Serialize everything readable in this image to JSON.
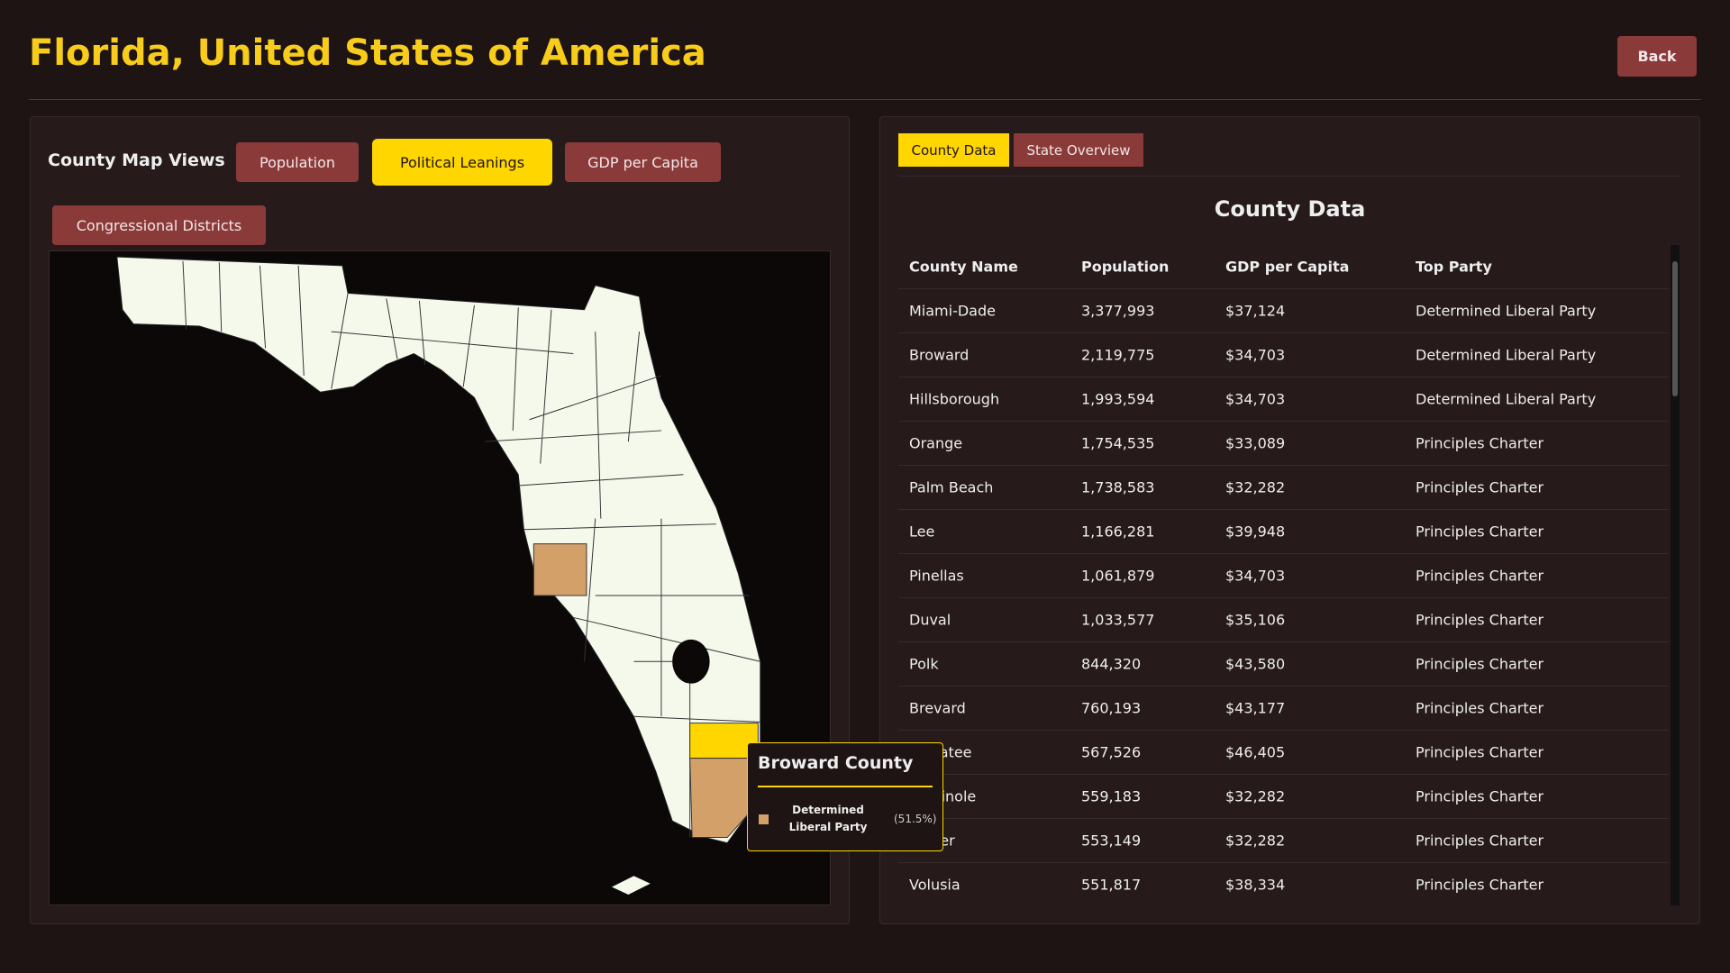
{
  "header": {
    "title": "Florida, United States of America",
    "back": "Back"
  },
  "map_panel": {
    "label": "County Map Views",
    "buttons": [
      "Population",
      "Political Leanings",
      "GDP per Capita",
      "Congressional Districts"
    ],
    "active": 1
  },
  "tooltip": {
    "title": "Broward County",
    "party": "Determined Liberal Party",
    "share": "(51.5%)"
  },
  "data_panel": {
    "tabs": [
      "County Data",
      "State Overview"
    ],
    "active": 0,
    "heading": "County Data",
    "table": {
      "columns": [
        "County Name",
        "Population",
        "GDP per Capita",
        "Top Party"
      ],
      "rows": [
        [
          "Miami-Dade",
          "3,377,993",
          "$37,124",
          "Determined Liberal Party"
        ],
        [
          "Broward",
          "2,119,775",
          "$34,703",
          "Determined Liberal Party"
        ],
        [
          "Hillsborough",
          "1,993,594",
          "$34,703",
          "Determined Liberal Party"
        ],
        [
          "Orange",
          "1,754,535",
          "$33,089",
          "Principles Charter"
        ],
        [
          "Palm Beach",
          "1,738,583",
          "$32,282",
          "Principles Charter"
        ],
        [
          "Lee",
          "1,166,281",
          "$39,948",
          "Principles Charter"
        ],
        [
          "Pinellas",
          "1,061,879",
          "$34,703",
          "Principles Charter"
        ],
        [
          "Duval",
          "1,033,577",
          "$35,106",
          "Principles Charter"
        ],
        [
          "Polk",
          "844,320",
          "$43,580",
          "Principles Charter"
        ],
        [
          "Brevard",
          "760,193",
          "$43,177",
          "Principles Charter"
        ],
        [
          "Manatee",
          "567,526",
          "$46,405",
          "Principles Charter"
        ],
        [
          "Seminole",
          "559,183",
          "$32,282",
          "Principles Charter"
        ],
        [
          "Collier",
          "553,149",
          "$32,282",
          "Principles Charter"
        ],
        [
          "Volusia",
          "551,817",
          "$38,334",
          "Principles Charter"
        ]
      ]
    }
  }
}
